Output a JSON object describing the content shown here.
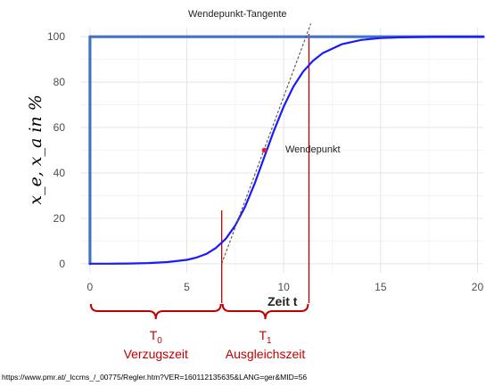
{
  "chart_data": {
    "type": "line",
    "ylabel": "x_e, x_a in %",
    "xlabel": "Zeit t",
    "xlim": [
      -0.5,
      20.3
    ],
    "ylim": [
      -4,
      104
    ],
    "x_ticks": [
      0,
      5,
      10,
      15,
      20
    ],
    "y_ticks": [
      0,
      20,
      40,
      60,
      80,
      100
    ],
    "grid": true,
    "series": [
      {
        "name": "input_step",
        "color": "#4472c4",
        "x": [
          0,
          0,
          20.3
        ],
        "y": [
          0,
          100,
          100
        ]
      },
      {
        "name": "output_response",
        "color": "#1a1aff",
        "x": [
          0,
          1,
          2,
          3,
          4,
          5,
          5.5,
          6,
          6.5,
          7,
          7.5,
          8,
          8.5,
          9,
          9.5,
          10,
          10.5,
          11,
          11.5,
          12,
          13,
          14,
          15,
          16,
          18,
          20.3
        ],
        "y": [
          0,
          0,
          0.1,
          0.3,
          0.7,
          1.7,
          2.7,
          4.3,
          6.9,
          10.9,
          16.8,
          25,
          35.3,
          47,
          58.7,
          69.3,
          78,
          84.6,
          89.3,
          92.7,
          96.7,
          98.6,
          99.4,
          99.7,
          100,
          100
        ]
      }
    ],
    "tangent": {
      "label": "Wendepunkt-Tangente",
      "x": [
        6.8,
        11.4
      ],
      "y": [
        0,
        105
      ]
    },
    "inflection_point": {
      "label": "Wendepunkt",
      "x": 9,
      "y": 50,
      "color": "#e8202a"
    },
    "marker_lines": [
      6.8,
      11.3
    ],
    "brackets": [
      {
        "from": 0,
        "to": 6.8,
        "label": "T",
        "sub": "0",
        "caption": "Verzugszeit"
      },
      {
        "from": 6.8,
        "to": 11.3,
        "label": "T",
        "sub": "1",
        "caption": "Ausgleichszeit"
      }
    ],
    "colors": {
      "step": "#4472c4",
      "response": "#1a1aff",
      "marker": "#c00000",
      "tangent": "#555555",
      "grid": "#e5e5e5"
    }
  },
  "source_url": "https://www.pmr.at/_lccms_/_00775/Regler.htm?VER=160112135635&LANG=ger&MID=56"
}
